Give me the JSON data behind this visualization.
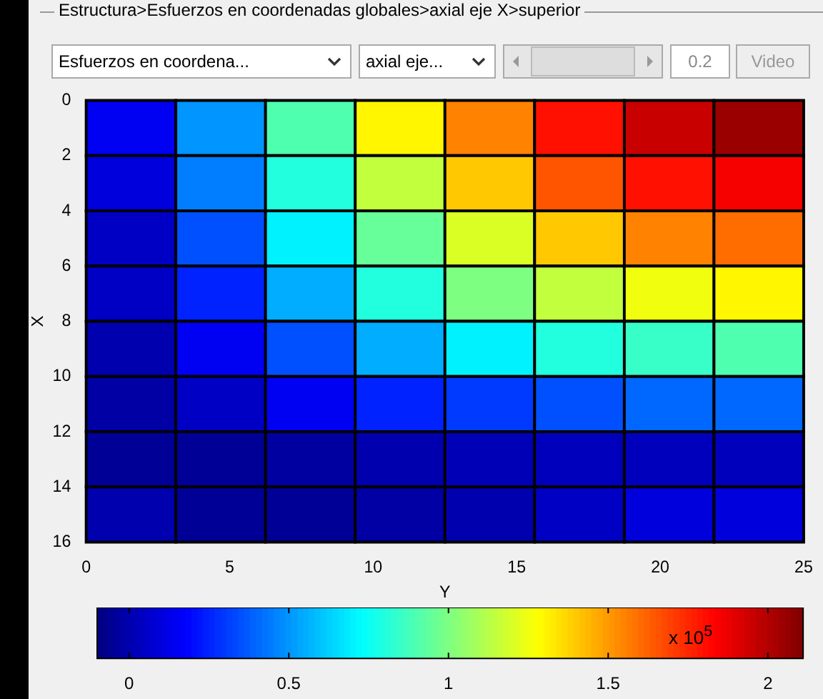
{
  "chart_data": {
    "type": "heatmap",
    "title": "Estructura>Esfuerzos en coordenadas globales>axial eje X>superior",
    "xlabel": "Y",
    "ylabel": "X",
    "xlim": [
      0,
      25
    ],
    "xticks": [
      0,
      5,
      10,
      15,
      20,
      25
    ],
    "ylim": [
      16,
      0
    ],
    "yticks": [
      0,
      2,
      4,
      6,
      8,
      10,
      12,
      14,
      16
    ],
    "cells": [
      [
        0.15,
        0.5,
        0.9,
        1.3,
        1.55,
        1.8,
        1.95,
        2.05
      ],
      [
        0.1,
        0.45,
        0.8,
        1.15,
        1.4,
        1.65,
        1.8,
        1.85
      ],
      [
        0.05,
        0.35,
        0.7,
        0.95,
        1.2,
        1.4,
        1.55,
        1.6
      ],
      [
        0.05,
        0.25,
        0.55,
        0.8,
        1.0,
        1.15,
        1.25,
        1.3
      ],
      [
        0.0,
        0.15,
        0.35,
        0.55,
        0.7,
        0.8,
        0.85,
        0.9
      ],
      [
        -0.02,
        0.05,
        0.15,
        0.25,
        0.3,
        0.35,
        0.4,
        0.4
      ],
      [
        -0.05,
        -0.05,
        -0.03,
        0.0,
        0.02,
        0.03,
        0.03,
        0.03
      ],
      [
        0.0,
        -0.05,
        -0.05,
        -0.02,
        0.0,
        0.05,
        0.1,
        0.1
      ]
    ],
    "clim": [
      -0.1,
      2.11
    ],
    "cticks": [
      0,
      0.5,
      1,
      1.5,
      2
    ],
    "clabel": "x 10$^{5}$",
    "annotations": [
      "Esfuerzos en coordena...",
      "axial eje...",
      "0.2",
      "Video"
    ]
  }
}
